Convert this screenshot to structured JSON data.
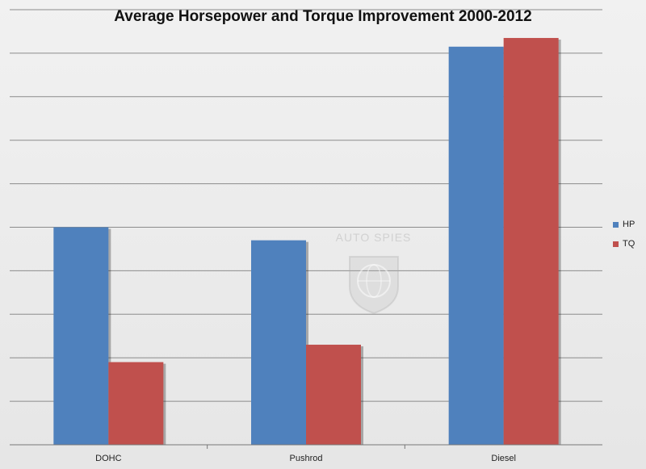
{
  "chart_data": {
    "type": "bar",
    "title": "Average Horsepower and Torque Improvement 2000-2012",
    "xlabel": "",
    "ylabel": "",
    "categories": [
      "DOHC",
      "Pushrod",
      "Diesel"
    ],
    "series": [
      {
        "name": "HP",
        "color": "#4f81bd",
        "values": [
          50,
          47,
          91.5
        ]
      },
      {
        "name": "TQ",
        "color": "#c0504d",
        "values": [
          19,
          23,
          93.5
        ]
      }
    ],
    "ylim": [
      0,
      100
    ],
    "y_gridlines": 10,
    "grid": true,
    "y_tick_labels_shown": false,
    "legend": "right"
  },
  "watermark": "AUTO SPIES"
}
